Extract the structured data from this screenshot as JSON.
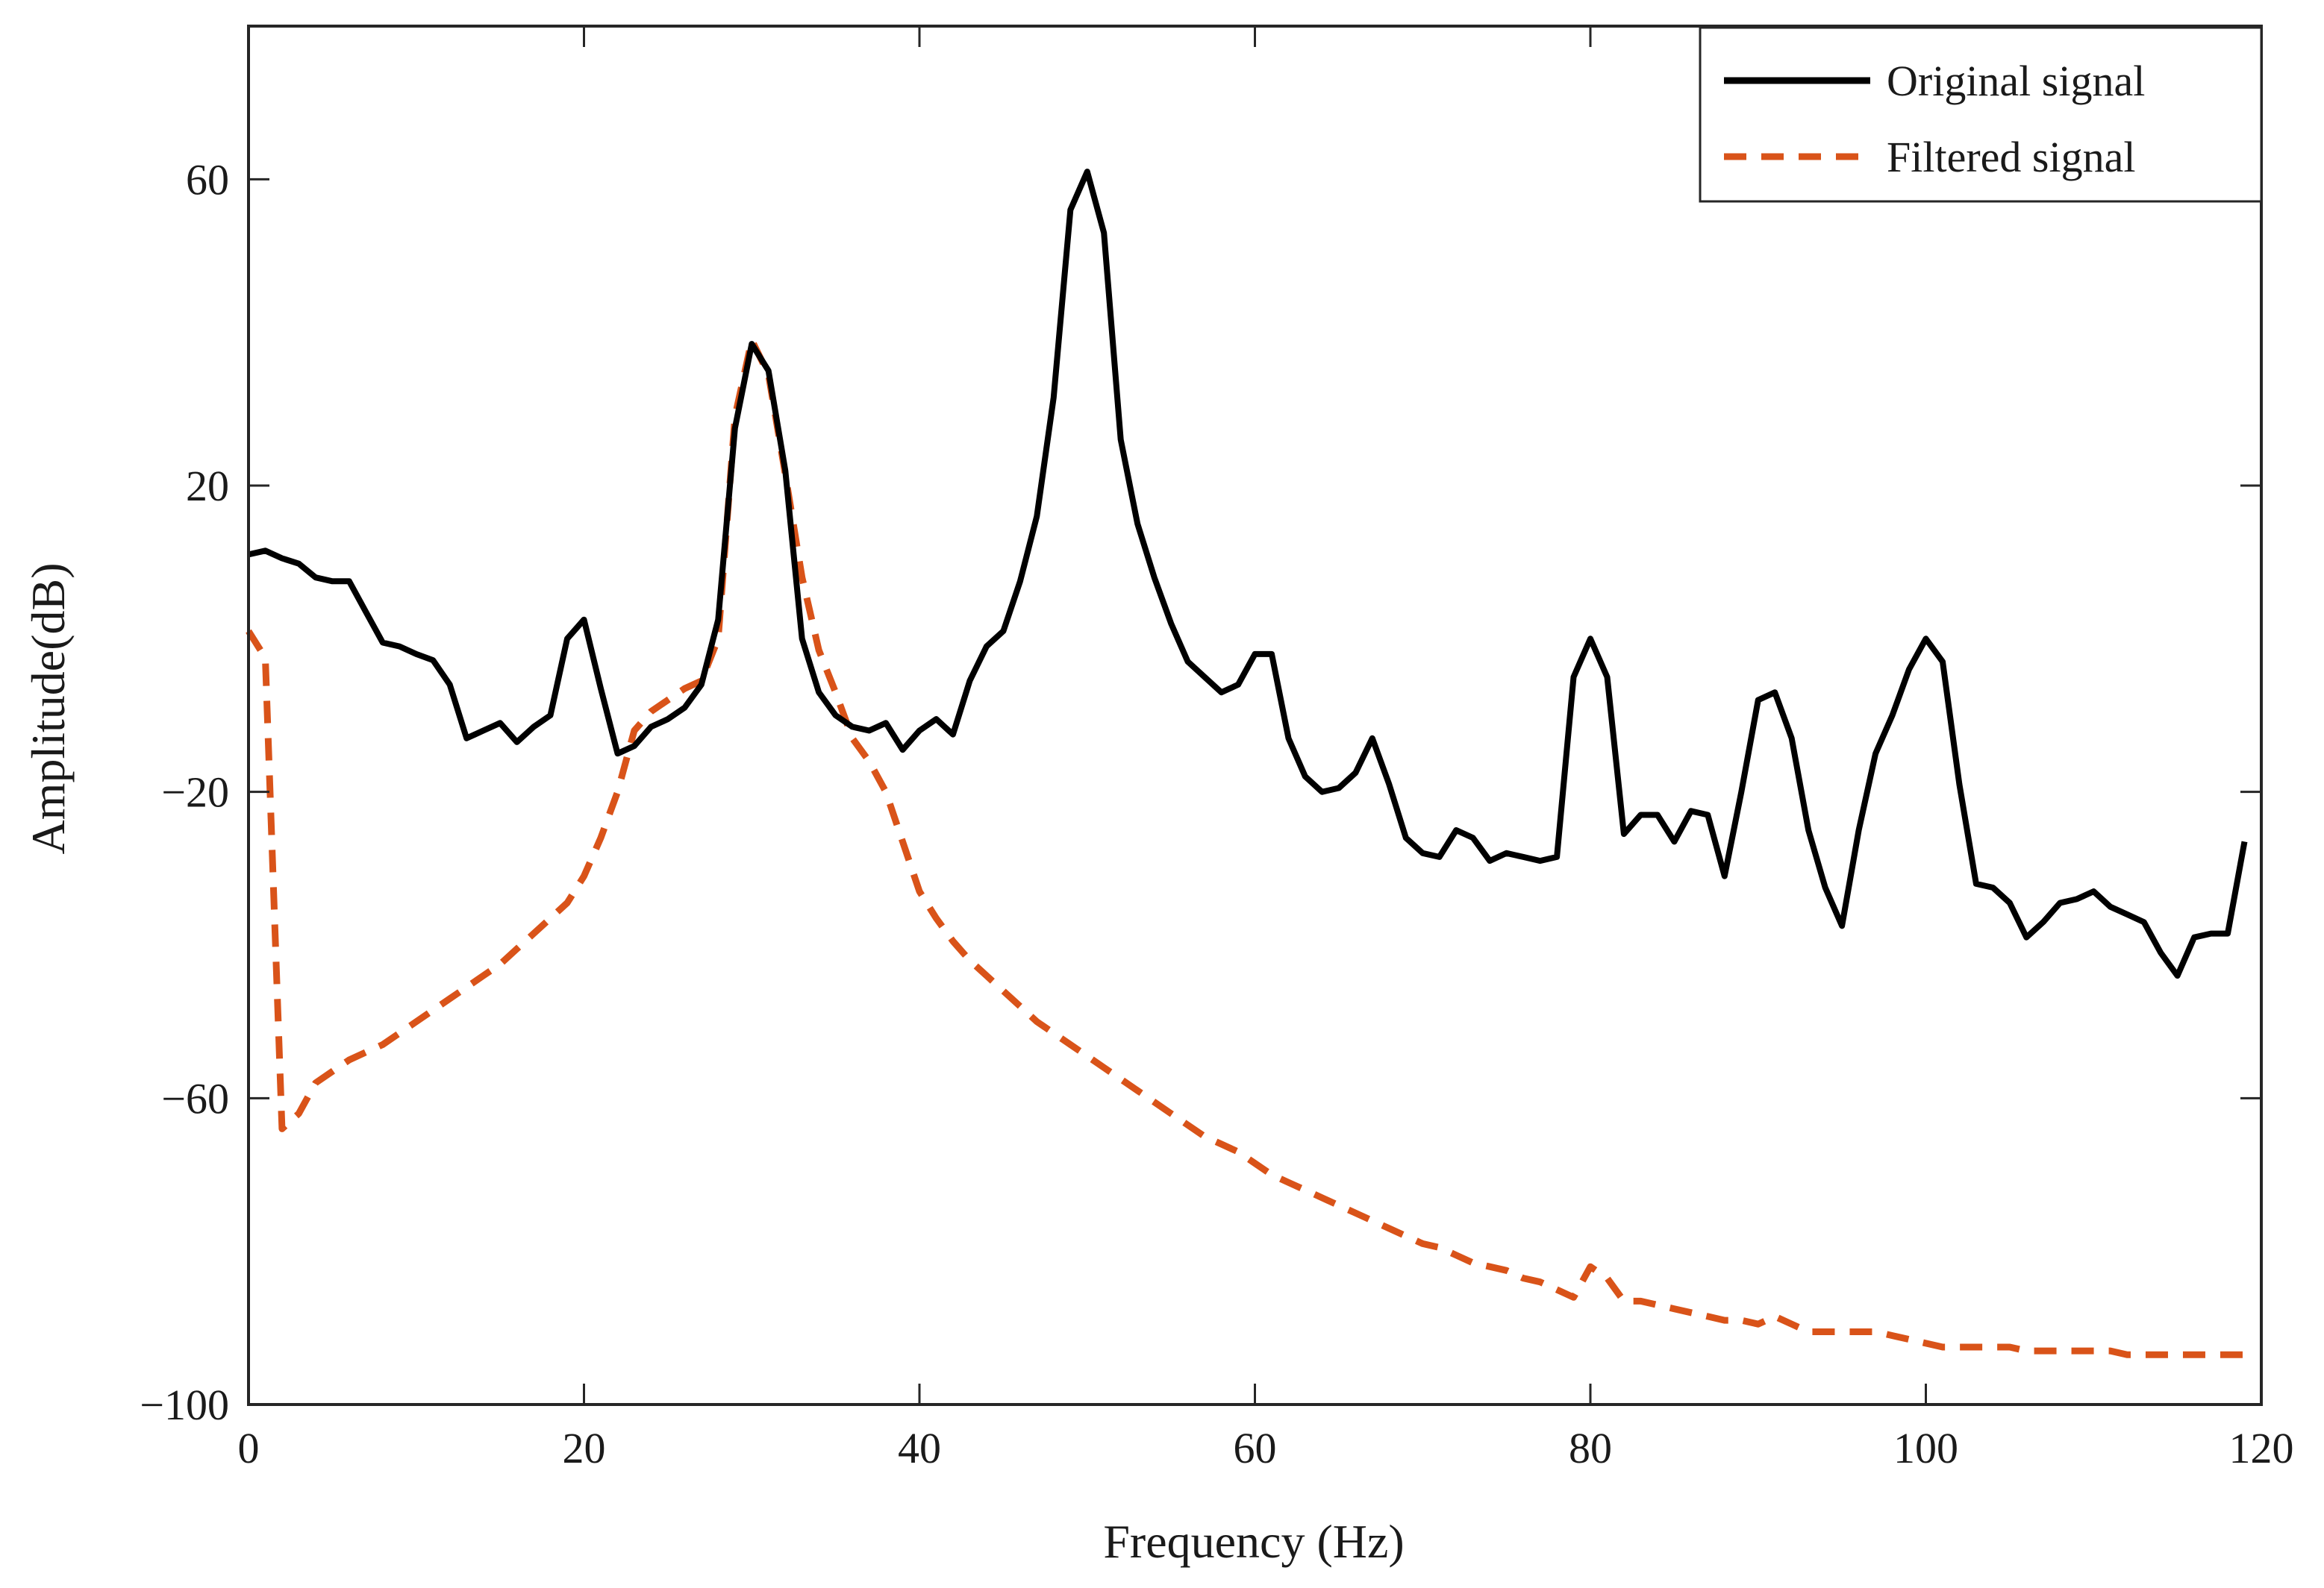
{
  "chart_data": {
    "type": "line",
    "title": "",
    "xlabel": "Frequency (Hz)",
    "ylabel": "Amplitude(dB)",
    "xlim": [
      0,
      120
    ],
    "ylim": [
      -100,
      80
    ],
    "xticks": [
      0,
      20,
      40,
      60,
      80,
      100,
      120
    ],
    "yticks": [
      -100,
      -60,
      -20,
      20,
      60
    ],
    "xtick_labels": [
      "0",
      "20",
      "40",
      "60",
      "80",
      "100",
      "120"
    ],
    "ytick_labels": [
      "−100",
      "−60",
      "−20",
      "20",
      "60"
    ],
    "grid": false,
    "legend_position": "top-right",
    "series": [
      {
        "name": "Original signal",
        "color": "#000000",
        "style": "solid",
        "x": [
          0,
          1,
          2,
          3,
          4,
          5,
          6,
          7,
          8,
          9,
          10,
          11,
          12,
          13,
          14,
          15,
          16,
          17,
          18,
          19,
          20,
          21,
          22,
          23,
          24,
          25,
          26,
          27,
          28,
          29,
          30,
          31,
          32,
          33,
          34,
          35,
          36,
          37,
          38,
          39,
          40,
          41,
          42,
          43,
          44,
          45,
          46,
          47,
          48,
          49,
          50,
          51,
          52,
          53,
          54,
          55,
          56,
          57,
          58,
          59,
          60,
          61,
          62,
          63,
          64,
          65,
          66,
          67,
          68,
          69,
          70,
          71,
          72,
          73,
          74,
          75,
          76,
          77,
          78,
          79,
          80,
          81,
          82,
          83,
          84,
          85,
          86,
          87,
          88,
          89,
          90,
          91,
          92,
          93,
          94,
          95,
          96,
          97,
          98,
          99,
          100,
          101,
          102,
          103,
          104,
          105,
          106,
          107,
          108,
          109,
          110,
          111,
          112,
          113,
          114,
          115,
          116,
          117,
          118,
          119
        ],
        "values": [
          11,
          11.5,
          10.5,
          9.8,
          8,
          7.5,
          7.5,
          3.5,
          -0.5,
          -1,
          -2,
          -2.8,
          -6,
          -13,
          -12,
          -11,
          -13.5,
          -11.5,
          -10,
          0,
          2.5,
          -6.5,
          -15,
          -14,
          -11.5,
          -10.5,
          -9,
          -6,
          2.5,
          27.5,
          38.5,
          35,
          22,
          0,
          -7,
          -10,
          -11.5,
          -12,
          -11,
          -14.5,
          -12,
          -10.5,
          -12.5,
          -5.5,
          -1,
          1,
          7.5,
          16,
          31.5,
          56,
          61,
          53,
          26,
          15,
          8,
          2,
          -3,
          -5,
          -7,
          -6,
          -2,
          -2,
          -13,
          -18,
          -20,
          -19.5,
          -17.5,
          -13,
          -19,
          -26,
          -28,
          -28.5,
          -25,
          -26,
          -29,
          -28,
          -28.5,
          -29,
          -28.5,
          -5,
          0,
          -5,
          -25.5,
          -23,
          -23,
          -26.5,
          -22.5,
          -23,
          -31,
          -20,
          -8,
          -7,
          -13,
          -25,
          -32.5,
          -37.5,
          -25,
          -15,
          -10,
          -4,
          0,
          -3,
          -19,
          -32,
          -32.5,
          -34.5,
          -39,
          -37,
          -34.5,
          -34,
          -33,
          -35,
          -36,
          -37,
          -41,
          -44,
          -39,
          -38.5,
          -38.5,
          -26.5
        ]
      },
      {
        "name": "Filtered signal",
        "color": "#D95319",
        "style": "dashed",
        "x": [
          0,
          1,
          2,
          3,
          4,
          5,
          6,
          7,
          8,
          9,
          10,
          11,
          12,
          13,
          14,
          15,
          16,
          17,
          18,
          19,
          20,
          21,
          22,
          23,
          24,
          25,
          26,
          27,
          28,
          29,
          30,
          31,
          32,
          33,
          34,
          35,
          36,
          37,
          38,
          39,
          40,
          41,
          42,
          43,
          44,
          45,
          46,
          47,
          48,
          49,
          50,
          51,
          52,
          53,
          54,
          55,
          56,
          57,
          58,
          59,
          60,
          61,
          62,
          63,
          64,
          65,
          66,
          67,
          68,
          69,
          70,
          71,
          72,
          73,
          74,
          75,
          76,
          77,
          78,
          79,
          80,
          81,
          82,
          83,
          84,
          85,
          86,
          87,
          88,
          89,
          90,
          91,
          92,
          93,
          94,
          95,
          96,
          97,
          98,
          99,
          100,
          101,
          102,
          103,
          104,
          105,
          106,
          107,
          108,
          109,
          110,
          111,
          112,
          113,
          114,
          115,
          116,
          117,
          118,
          119
        ],
        "values": [
          1,
          -2.5,
          -64,
          -62,
          -58,
          -56.5,
          -55,
          -54,
          -53,
          -51.5,
          -50,
          -48.5,
          -47,
          -45.5,
          -44,
          -42.5,
          -40.5,
          -38.5,
          -36.5,
          -34.5,
          -31,
          -26,
          -20,
          -12,
          -9.5,
          -8,
          -6.5,
          -5.5,
          0,
          29,
          39,
          34.5,
          21.5,
          8,
          -1.5,
          -7,
          -13,
          -16,
          -20,
          -26.5,
          -33,
          -36.5,
          -39.5,
          -42,
          -44,
          -46,
          -48,
          -50,
          -51.5,
          -53,
          -54.5,
          -56,
          -57.5,
          -59,
          -60.5,
          -62,
          -63.5,
          -65,
          -66,
          -67,
          -68.5,
          -70,
          -71,
          -72,
          -73,
          -74,
          -75,
          -76,
          -77,
          -78,
          -79,
          -79.5,
          -80.5,
          -81.5,
          -82,
          -82.5,
          -83.5,
          -84,
          -85,
          -86,
          -82,
          -83.5,
          -86.5,
          -86.5,
          -87,
          -87.5,
          -88,
          -88.5,
          -89,
          -89,
          -89.5,
          -88.5,
          -89.5,
          -90.5,
          -90.5,
          -90.5,
          -90.5,
          -90.5,
          -91,
          -91.5,
          -92,
          -92.5,
          -92.5,
          -92.5,
          -92.5,
          -92.5,
          -93,
          -93,
          -93,
          -93,
          -93,
          -93,
          -93.5,
          -93.5,
          -93.5,
          -93.5,
          -93.5,
          -93.5,
          -93.5,
          -93.5
        ]
      }
    ]
  }
}
